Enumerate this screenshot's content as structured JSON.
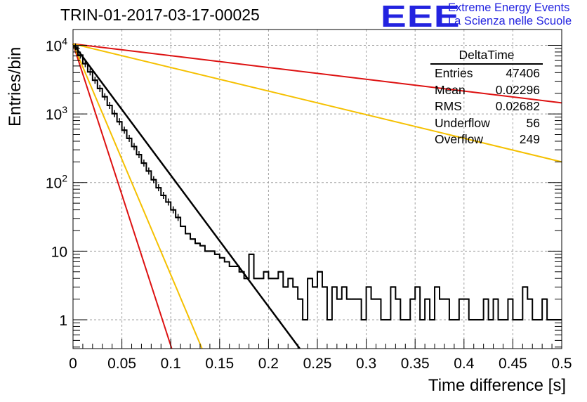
{
  "header": {
    "title": "TRIN-01-2017-03-17-00025",
    "logo_letters": "EEE",
    "logo_line1": "Extreme Energy Events",
    "logo_line2": "La Scienza nelle Scuole"
  },
  "stats": {
    "title": "DeltaTime",
    "rows": [
      {
        "label": "Entries",
        "value": "47406"
      },
      {
        "label": "Mean",
        "value": "0.02296"
      },
      {
        "label": "RMS",
        "value": "0.02682"
      },
      {
        "label": "Underflow",
        "value": "56"
      },
      {
        "label": "Overflow",
        "value": "249"
      }
    ]
  },
  "colors": {
    "histogram": "#000000",
    "fit": "#000000",
    "red_curve": "#dd1111",
    "yellow_curve": "#f5c000",
    "grid": "#a0a0a0"
  },
  "chart_data": {
    "type": "line",
    "xlabel": "Time difference [s]",
    "ylabel": "Entries/bin",
    "xlim": [
      0,
      0.5
    ],
    "ylim": [
      0.38,
      17000
    ],
    "log_y": true,
    "grid": true,
    "x_ticks": [
      "0",
      "0.05",
      "0.1",
      "0.15",
      "0.2",
      "0.25",
      "0.3",
      "0.35",
      "0.4",
      "0.45",
      "0.5"
    ],
    "y_ticks": [
      "1",
      "10",
      "10^2",
      "10^3",
      "10^4"
    ],
    "histogram": {
      "bin_width": 0.005,
      "x_start": 0,
      "counts": [
        9500,
        7200,
        5400,
        4100,
        3100,
        2350,
        1780,
        1330,
        1010,
        770,
        580,
        440,
        335,
        255,
        192,
        147,
        110,
        84,
        65,
        52,
        40,
        31,
        23,
        18,
        15,
        13,
        12,
        10,
        10,
        9,
        8,
        7,
        6,
        6,
        5,
        4,
        9,
        4,
        4,
        5,
        4,
        4,
        5,
        3,
        4,
        3,
        2,
        1,
        4,
        3,
        5,
        3,
        1,
        3,
        2,
        3,
        2,
        2,
        2,
        1,
        3,
        2,
        2,
        1,
        1,
        3,
        2,
        1,
        1,
        2,
        3,
        1,
        2,
        1,
        3,
        2,
        2,
        1,
        1,
        2,
        2,
        1,
        1,
        1,
        2,
        1,
        2,
        1,
        1,
        2,
        1,
        1,
        3,
        2,
        1,
        1,
        2,
        1,
        1,
        1
      ]
    },
    "series": [
      {
        "x": [
          0,
          0.232
        ],
        "y": [
          10500,
          0.38
        ]
      },
      {
        "x": [
          0,
          0.101
        ],
        "y": [
          10500,
          0.38
        ]
      },
      {
        "x": [
          0,
          0.132
        ],
        "y": [
          10500,
          0.38
        ]
      },
      {
        "x": [
          0,
          0.5
        ],
        "y": [
          10500,
          1450
        ]
      },
      {
        "x": [
          0,
          0.5
        ],
        "y": [
          10500,
          200
        ]
      }
    ]
  }
}
